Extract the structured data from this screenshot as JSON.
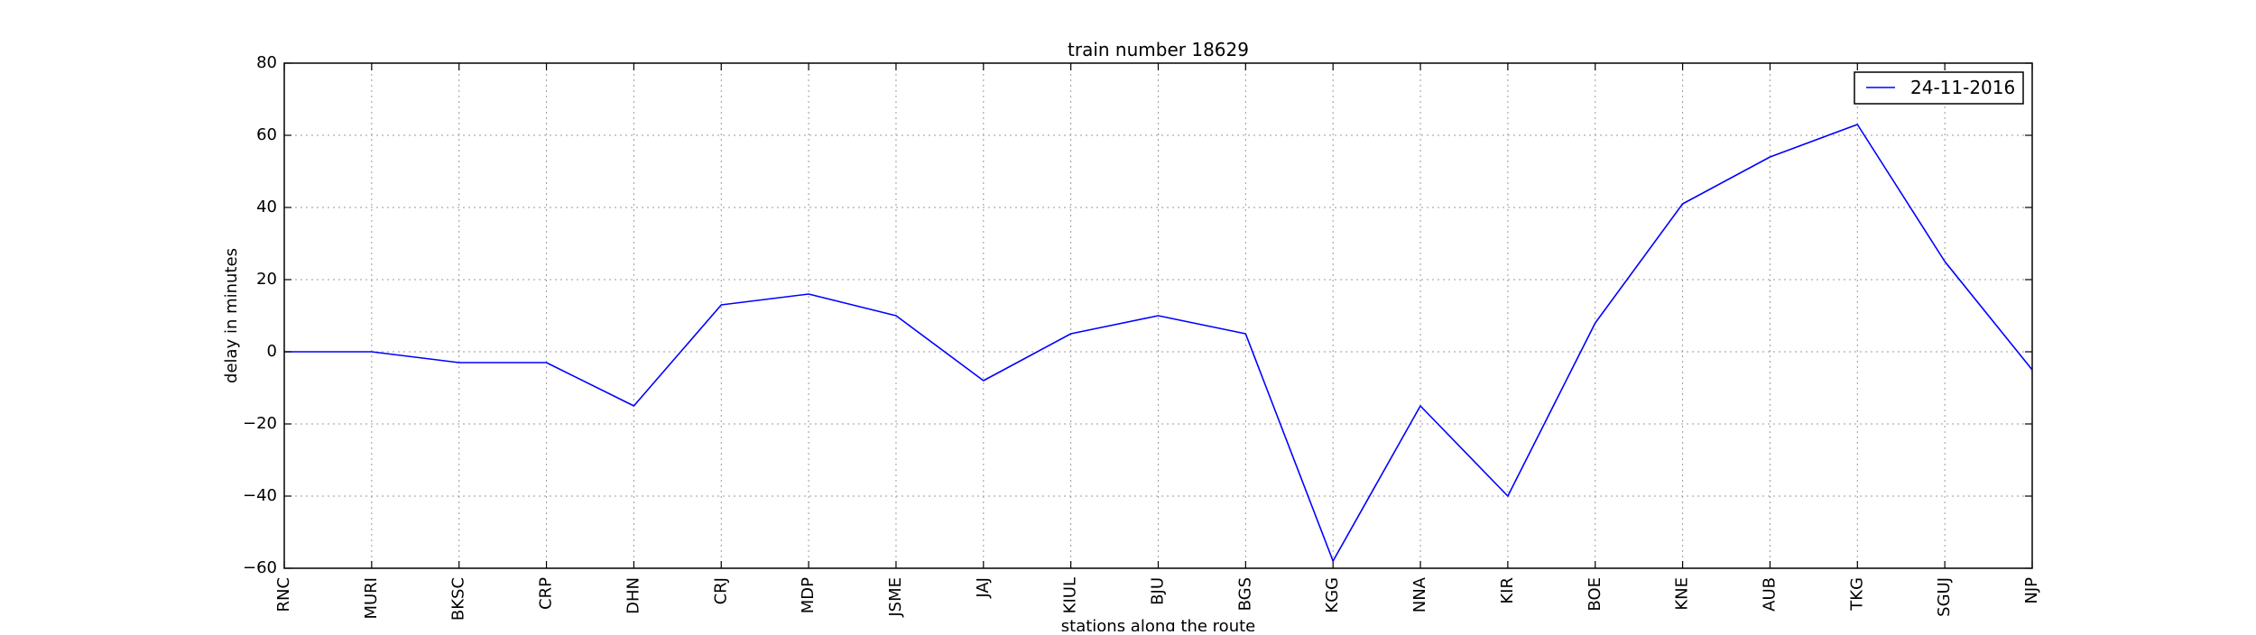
{
  "chart_data": {
    "type": "line",
    "title": "train number 18629",
    "xlabel": "stations along the route",
    "ylabel": "delay in minutes",
    "categories": [
      "RNC",
      "MURI",
      "BKSC",
      "CRP",
      "DHN",
      "CRJ",
      "MDP",
      "JSME",
      "JAJ",
      "KIUL",
      "BJU",
      "BGS",
      "KGG",
      "NNA",
      "KIR",
      "BOE",
      "KNE",
      "AUB",
      "TKG",
      "SGUJ",
      "NJP"
    ],
    "series": [
      {
        "name": "24-11-2016",
        "color": "#0000ff",
        "values": [
          0,
          0,
          -3,
          -3,
          -15,
          13,
          16,
          10,
          -8,
          5,
          10,
          5,
          -58,
          -15,
          -40,
          8,
          41,
          54,
          63,
          25,
          -5
        ]
      }
    ],
    "ylim": [
      -60,
      80
    ],
    "yticks": [
      "−60",
      "−40",
      "−20",
      "0",
      "20",
      "40",
      "60",
      "80"
    ],
    "grid": true,
    "legend_position": "top-right"
  }
}
